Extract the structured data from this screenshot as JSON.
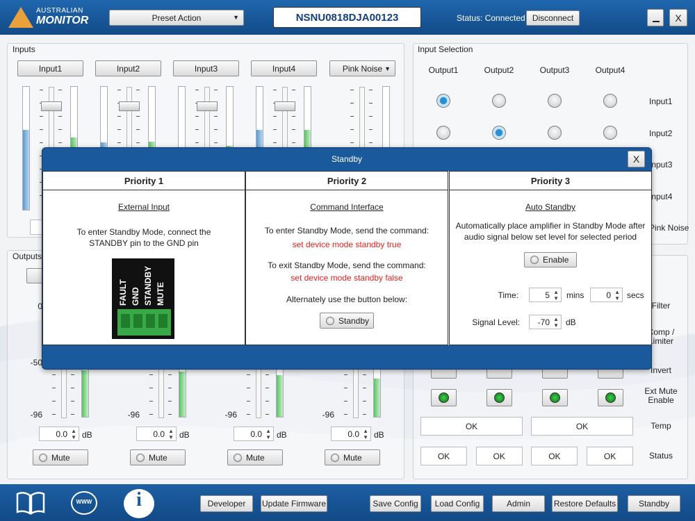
{
  "header": {
    "logo_line1": "AUSTRALIAN",
    "logo_line2": "MONITOR",
    "preset": "Preset Action",
    "serial": "NSNU0818DJA00123",
    "status": "Status: Connected",
    "disconnect": "Disconnect",
    "close": "X"
  },
  "inputs": {
    "title": "Inputs",
    "channels": [
      "Input1",
      "Input2",
      "Input3",
      "Input4"
    ],
    "pink_noise": "Pink Noise"
  },
  "outputs": {
    "title": "Outputs",
    "channels": [
      {
        "scale": [
          "0",
          "-50",
          "-96"
        ],
        "gain": "0.0",
        "unit": "dB",
        "mute": "Mute"
      },
      {
        "scale": [
          "-96"
        ],
        "gain": "0.0",
        "unit": "dB",
        "mute": "Mute"
      },
      {
        "scale": [
          "-96"
        ],
        "gain": "0.0",
        "unit": "dB",
        "mute": "Mute"
      },
      {
        "scale": [
          "-96"
        ],
        "gain": "0.0",
        "unit": "dB",
        "mute": "Mute"
      }
    ]
  },
  "input_selection": {
    "title": "Input Selection",
    "outputs": [
      "Output1",
      "Output2",
      "Output3",
      "Output4"
    ],
    "inputs": [
      "Input1",
      "Input2",
      "Input3",
      "Input4",
      "Pink Noise"
    ]
  },
  "output_status": {
    "rows": [
      "Filter",
      "Comp / Limiter",
      "Invert",
      "Ext Mute Enable",
      "Temp",
      "Status"
    ],
    "temp": [
      "OK",
      "OK"
    ],
    "status": [
      "OK",
      "OK",
      "OK",
      "OK"
    ]
  },
  "dialog": {
    "title": "Standby",
    "close": "X",
    "columns": [
      {
        "heading": "Priority 1",
        "subheading": "External Input",
        "text": "To enter Standby Mode, connect the STANDBY pin to the GND pin",
        "pins": [
          "FAULT",
          "GND",
          "STANDBY",
          "MUTE"
        ]
      },
      {
        "heading": "Priority 2",
        "subheading": "Command Interface",
        "enter_text": "To enter Standby Mode, send the command:",
        "enter_command": "set device mode standby true",
        "exit_text": "To exit Standby Mode, send the command:",
        "exit_command": "set device mode standby false",
        "alt_text": "Alternately use the button below:",
        "button": "Standby"
      },
      {
        "heading": "Priority 3",
        "subheading": "Auto Standby",
        "text": "Automatically place amplifier in Standby Mode after audio signal below set level for selected period",
        "button": "Enable",
        "time_label": "Time:",
        "time_mins": "5",
        "mins": "mins",
        "time_secs": "0",
        "secs": "secs",
        "level_label": "Signal Level:",
        "level": "-70",
        "level_unit": "dB"
      }
    ]
  },
  "footer": {
    "www_icon": "WWW",
    "info_icon": "i",
    "buttons": [
      "Developer",
      "Update Firmware",
      "Save Config",
      "Load Config",
      "Admin",
      "Restore Defaults",
      "Standby"
    ]
  }
}
